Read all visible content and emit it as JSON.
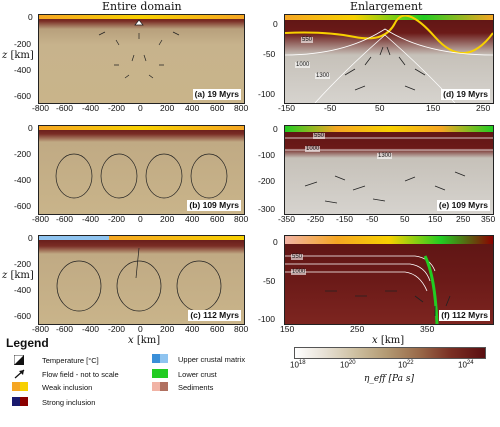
{
  "titles": {
    "left": "Entire domain",
    "right": "Enlargement"
  },
  "colors": {
    "matrix": "#c9b48a",
    "mantle_dark": "#6b1a18",
    "weak": "#f5a623",
    "weak2": "#f7d000",
    "strong": "#1a1a6e",
    "strong2": "#8b0000",
    "upper_crust": "#3a8fd8",
    "upper_crust2": "#8fc4f0",
    "lower_crust": "#22cc22",
    "sediment": "#f1b3a5",
    "sediment2": "#b07060"
  },
  "panels": {
    "a": "(a) 19 Myrs",
    "b": "(b) 109 Myrs",
    "c": "(c) 112 Myrs",
    "d": "(d) 19 Myrs",
    "e": "(e) 109 Myrs",
    "f": "(f) 112 Myrs"
  },
  "left_axis": {
    "z_ticks": [
      "0",
      "-200",
      "-400",
      "-600"
    ],
    "x_ticks": [
      "-800",
      "-600",
      "-400",
      "-200",
      "0",
      "200",
      "400",
      "600",
      "800"
    ],
    "xlabel": "x",
    "xunit": "[km]",
    "zlabel": "z",
    "zunit": "[km]"
  },
  "right_axis": {
    "d": {
      "z_ticks": [
        "0",
        "-50",
        "-100"
      ],
      "x_ticks": [
        "-150",
        "-50",
        "50",
        "150",
        "250"
      ]
    },
    "e": {
      "z_ticks": [
        "0",
        "-100",
        "-200",
        "-300"
      ],
      "x_ticks": [
        "-350",
        "-250",
        "-150",
        "-50",
        "50",
        "150",
        "250",
        "350"
      ]
    },
    "f": {
      "z_ticks": [
        "0",
        "-50",
        "-100"
      ],
      "x_ticks": [
        "150",
        "250",
        "350"
      ]
    },
    "xlabel": "x",
    "xunit": "[km]"
  },
  "isotherms": {
    "d": [
      "550",
      "1000",
      "1300"
    ],
    "e": [
      "550",
      "1000",
      "1300"
    ],
    "f": [
      "550",
      "1000"
    ]
  },
  "legend": {
    "title": "Legend",
    "items": {
      "temperature": "Temperature [°C]",
      "flow": "Flow field - not to scale",
      "weak": "Weak inclusion",
      "strong": "Strong inclusion",
      "upper_crust": "Upper crustal matrix",
      "lower_crust": "Lower crust",
      "sediments": "Sediments"
    }
  },
  "colorbar": {
    "ticks": [
      "10^18",
      "10^20",
      "10^22",
      "10^24"
    ],
    "label": "η_eff [Pa s]"
  }
}
